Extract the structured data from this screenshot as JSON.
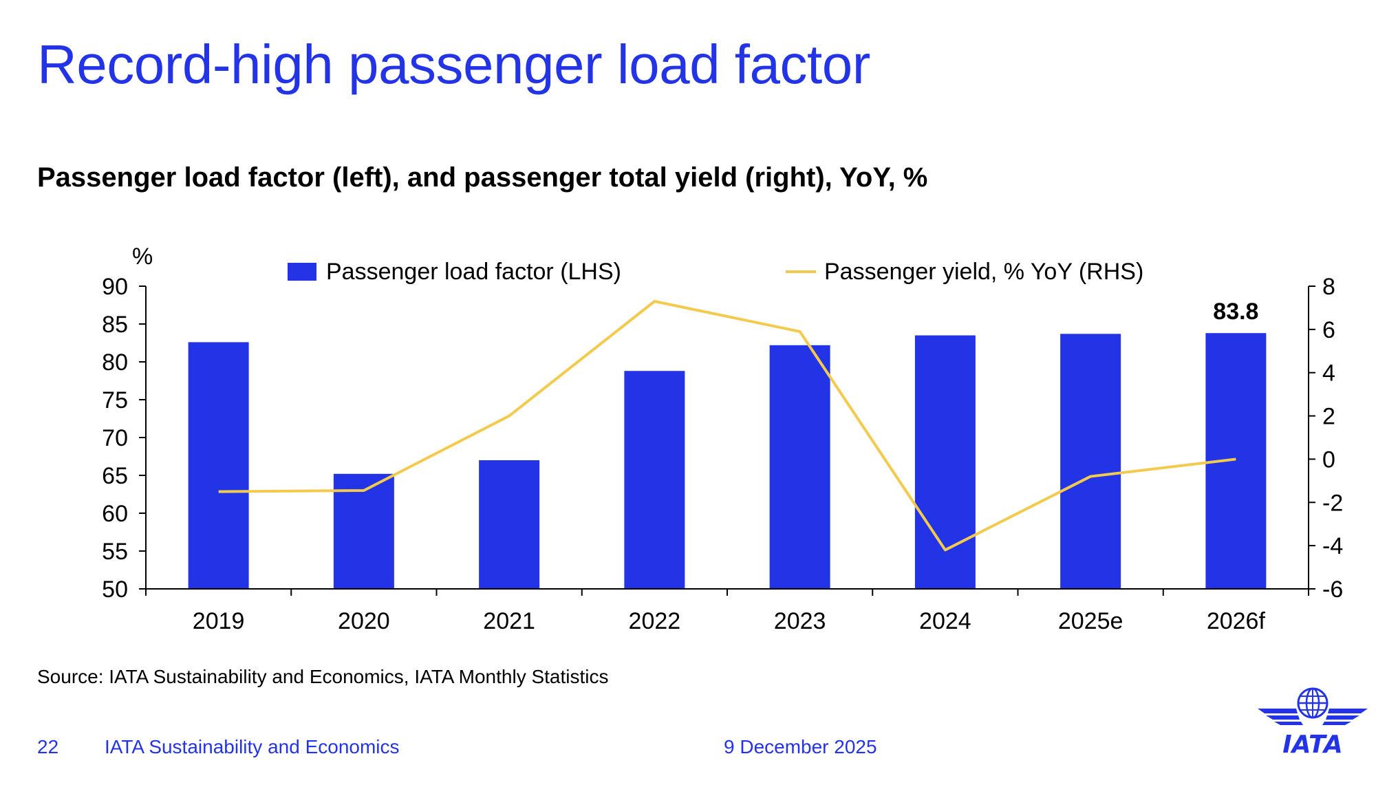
{
  "slide": {
    "title": "Record-high passenger load factor",
    "source": "Source: IATA Sustainability and Economics, IATA Monthly Statistics",
    "footer": {
      "page_number": "22",
      "organization": "IATA Sustainability and Economics",
      "date": "9 December 2025"
    },
    "logo_text": "IATA"
  },
  "colors": {
    "bar": "#2333e6",
    "line": "#f2cb4e",
    "brand": "#2333e6",
    "axis": "#000000"
  },
  "chart_data": {
    "type": "bar",
    "title": "Passenger load factor (left), and passenger total yield (right), YoY, %",
    "left_axis_label": "%",
    "categories": [
      "2019",
      "2020",
      "2021",
      "2022",
      "2023",
      "2024",
      "2025e",
      "2026f"
    ],
    "series": [
      {
        "name": "Passenger load factor (LHS)",
        "type": "bar",
        "axis": "left",
        "values": [
          82.6,
          65.2,
          67.0,
          78.8,
          82.2,
          83.5,
          83.7,
          83.8
        ]
      },
      {
        "name": "Passenger yield, % YoY (RHS)",
        "type": "line",
        "axis": "right",
        "values": [
          -1.5,
          -1.45,
          2.0,
          7.3,
          5.9,
          -4.2,
          -0.8,
          0.0
        ]
      }
    ],
    "annotations": [
      {
        "category": "2026f",
        "text": "83.8"
      }
    ],
    "left_axis": {
      "min": 50,
      "max": 90,
      "ticks": [
        50,
        55,
        60,
        65,
        70,
        75,
        80,
        85,
        90
      ]
    },
    "right_axis": {
      "min": -6,
      "max": 8,
      "ticks": [
        -6,
        -4,
        -2,
        0,
        2,
        4,
        6,
        8
      ]
    },
    "legend_position": "top"
  }
}
